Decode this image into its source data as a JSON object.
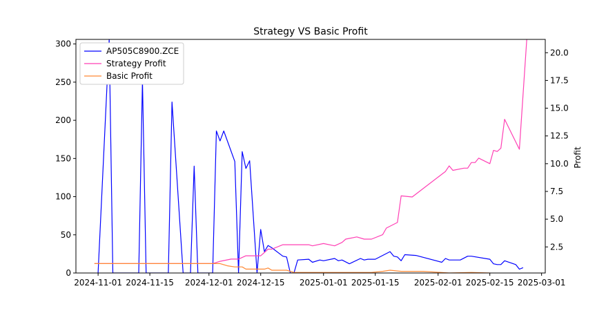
{
  "chart_data": {
    "type": "line",
    "title": "Strategy VS Basic Profit",
    "xlabel": "",
    "ylabel_left": "",
    "ylabel_right": "Profit",
    "x_ticks": [
      "2024-11-01",
      "2024-11-15",
      "2024-12-01",
      "2024-12-15",
      "2025-01-01",
      "2025-01-15",
      "2025-02-01",
      "2025-02-15",
      "2025-03-01"
    ],
    "y_left_ticks": [
      "0",
      "50",
      "100",
      "150",
      "200",
      "250",
      "300"
    ],
    "y_right_ticks": [
      "2.5",
      "5.0",
      "7.5",
      "10.0",
      "12.5",
      "15.0",
      "17.5",
      "20.0"
    ],
    "xlim": [
      "2024-10-26",
      "2025-03-02"
    ],
    "ylim_left": [
      0,
      306
    ],
    "ylim_right": [
      0.15,
      21.2
    ],
    "legend_position": "upper-left",
    "series": [
      {
        "name": "AP505C8900.ZCE",
        "axis": "left",
        "color": "#0000ff",
        "points": [
          [
            "2024-11-01",
            0
          ],
          [
            "2024-11-04",
            306
          ],
          [
            "2024-11-05",
            0
          ],
          [
            "2024-11-12",
            0
          ],
          [
            "2024-11-13",
            252
          ],
          [
            "2024-11-14",
            0
          ],
          [
            "2024-11-20",
            0
          ],
          [
            "2024-11-21",
            224
          ],
          [
            "2024-11-24",
            0
          ],
          [
            "2024-11-26",
            0
          ],
          [
            "2024-11-27",
            140
          ],
          [
            "2024-11-28",
            0
          ],
          [
            "2024-12-02",
            0
          ],
          [
            "2024-12-03",
            186
          ],
          [
            "2024-12-04",
            173
          ],
          [
            "2024-12-05",
            186
          ],
          [
            "2024-12-08",
            146
          ],
          [
            "2024-12-09",
            0
          ],
          [
            "2024-12-10",
            159
          ],
          [
            "2024-12-11",
            137
          ],
          [
            "2024-12-12",
            147
          ],
          [
            "2024-12-14",
            0
          ],
          [
            "2024-12-15",
            57
          ],
          [
            "2024-12-16",
            28
          ],
          [
            "2024-12-17",
            36
          ],
          [
            "2024-12-18",
            33
          ],
          [
            "2024-12-21",
            22
          ],
          [
            "2024-12-22",
            21
          ],
          [
            "2024-12-23",
            0
          ],
          [
            "2024-12-24",
            0
          ],
          [
            "2024-12-25",
            17
          ],
          [
            "2024-12-28",
            18
          ],
          [
            "2024-12-29",
            14
          ],
          [
            "2024-12-31",
            17
          ],
          [
            "2025-01-01",
            16
          ],
          [
            "2025-01-04",
            19
          ],
          [
            "2025-01-05",
            16
          ],
          [
            "2025-01-06",
            17
          ],
          [
            "2025-01-08",
            12
          ],
          [
            "2025-01-11",
            19
          ],
          [
            "2025-01-12",
            17
          ],
          [
            "2025-01-13",
            18
          ],
          [
            "2025-01-15",
            18
          ],
          [
            "2025-01-19",
            28
          ],
          [
            "2025-01-20",
            22
          ],
          [
            "2025-01-21",
            21
          ],
          [
            "2025-01-22",
            16
          ],
          [
            "2025-01-23",
            24
          ],
          [
            "2025-01-26",
            23
          ],
          [
            "2025-02-02",
            14
          ],
          [
            "2025-02-03",
            19
          ],
          [
            "2025-02-04",
            17
          ],
          [
            "2025-02-07",
            17
          ],
          [
            "2025-02-09",
            22
          ],
          [
            "2025-02-10",
            22
          ],
          [
            "2025-02-15",
            18
          ],
          [
            "2025-02-16",
            12
          ],
          [
            "2025-02-17",
            11
          ],
          [
            "2025-02-18",
            11
          ],
          [
            "2025-02-19",
            16
          ],
          [
            "2025-02-22",
            11
          ],
          [
            "2025-02-23",
            5
          ],
          [
            "2025-02-24",
            7
          ]
        ]
      },
      {
        "name": "Strategy Profit",
        "axis": "right",
        "color": "#ff3fb4",
        "points": [
          [
            "2024-10-31",
            1.0
          ],
          [
            "2024-12-02",
            1.0
          ],
          [
            "2024-12-04",
            1.2
          ],
          [
            "2024-12-07",
            1.4
          ],
          [
            "2024-12-09",
            1.4
          ],
          [
            "2024-12-11",
            1.7
          ],
          [
            "2024-12-15",
            1.7
          ],
          [
            "2024-12-16",
            2.0
          ],
          [
            "2024-12-17",
            2.3
          ],
          [
            "2024-12-18",
            2.3
          ],
          [
            "2024-12-21",
            2.7
          ],
          [
            "2024-12-28",
            2.7
          ],
          [
            "2024-12-29",
            2.6
          ],
          [
            "2025-01-01",
            2.8
          ],
          [
            "2025-01-04",
            2.6
          ],
          [
            "2025-01-06",
            2.9
          ],
          [
            "2025-01-07",
            3.2
          ],
          [
            "2025-01-10",
            3.4
          ],
          [
            "2025-01-12",
            3.2
          ],
          [
            "2025-01-14",
            3.2
          ],
          [
            "2025-01-17",
            3.6
          ],
          [
            "2025-01-18",
            4.2
          ],
          [
            "2025-01-21",
            4.7
          ],
          [
            "2025-01-22",
            7.1
          ],
          [
            "2025-01-25",
            7.0
          ],
          [
            "2025-02-03",
            9.3
          ],
          [
            "2025-02-04",
            9.8
          ],
          [
            "2025-02-05",
            9.4
          ],
          [
            "2025-02-08",
            9.6
          ],
          [
            "2025-02-09",
            9.6
          ],
          [
            "2025-02-10",
            10.1
          ],
          [
            "2025-02-11",
            10.1
          ],
          [
            "2025-02-12",
            10.5
          ],
          [
            "2025-02-15",
            10.0
          ],
          [
            "2025-02-16",
            11.2
          ],
          [
            "2025-02-17",
            11.1
          ],
          [
            "2025-02-18",
            11.4
          ],
          [
            "2025-02-19",
            14.0
          ],
          [
            "2025-02-23",
            11.3
          ],
          [
            "2025-02-25",
            21.2
          ]
        ]
      },
      {
        "name": "Basic Profit",
        "axis": "right",
        "color": "#ff8833",
        "points": [
          [
            "2024-10-31",
            1.0
          ],
          [
            "2024-12-04",
            1.0
          ],
          [
            "2024-12-06",
            0.8
          ],
          [
            "2024-12-08",
            0.7
          ],
          [
            "2024-12-10",
            0.7
          ],
          [
            "2024-12-11",
            0.5
          ],
          [
            "2024-12-16",
            0.5
          ],
          [
            "2024-12-17",
            0.6
          ],
          [
            "2024-12-18",
            0.4
          ],
          [
            "2024-12-22",
            0.4
          ],
          [
            "2024-12-24",
            0.2
          ],
          [
            "2025-01-14",
            0.2
          ],
          [
            "2025-01-17",
            0.3
          ],
          [
            "2025-01-19",
            0.4
          ],
          [
            "2025-01-22",
            0.3
          ],
          [
            "2025-01-28",
            0.3
          ],
          [
            "2025-02-04",
            0.15
          ],
          [
            "2025-02-10",
            0.2
          ],
          [
            "2025-02-15",
            0.15
          ],
          [
            "2025-02-18",
            0.0
          ],
          [
            "2025-02-25",
            0.0
          ]
        ]
      }
    ]
  }
}
